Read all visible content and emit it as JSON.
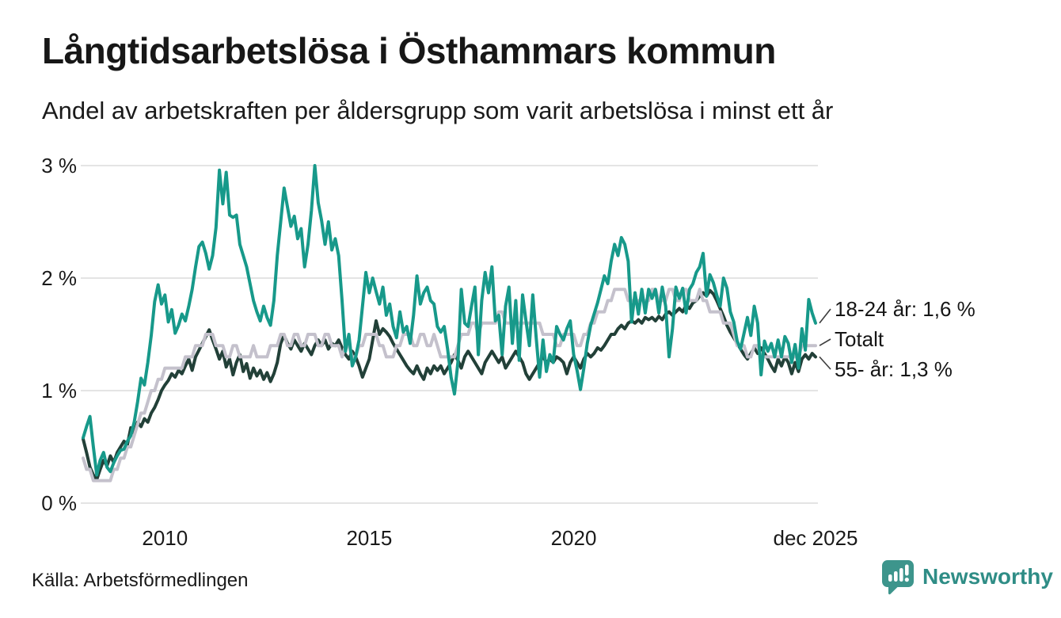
{
  "header": {
    "title": "Långtidsarbetslösa i Östhammars kommun",
    "subtitle": "Andel av arbetskraften per åldersgrupp som varit arbetslösa i minst ett år"
  },
  "footer": {
    "source": "Källa: Arbetsförmedlingen",
    "logo_text": "Newsworthy"
  },
  "chart_data": {
    "type": "line",
    "title": "Långtidsarbetslösa i Östhammars kommun",
    "subtitle": "Andel av arbetskraften per åldersgrupp som varit arbetslösa i minst ett år",
    "source": "Källa: Arbetsförmedlingen",
    "unit": "%",
    "grid": true,
    "grid_color": "#e4e4e4",
    "legend_position": "end-of-line-labels",
    "x_axis": {
      "start": "2008-01",
      "end": "2025-12",
      "frequency": "monthly",
      "ticks": [
        {
          "month_index": 24,
          "label": "2010"
        },
        {
          "month_index": 84,
          "label": "2015"
        },
        {
          "month_index": 144,
          "label": "2020"
        },
        {
          "month_index": 215,
          "label": "dec 2025"
        }
      ]
    },
    "y_axis": {
      "min": 0,
      "max": 3,
      "ticks": [
        {
          "value": 0,
          "label": "0 %"
        },
        {
          "value": 1,
          "label": "1 %"
        },
        {
          "value": 2,
          "label": "2 %"
        },
        {
          "value": 3,
          "label": "3 %"
        }
      ]
    },
    "series": [
      {
        "id": "age-18-24",
        "name": "18-24 år",
        "color": "#17998a",
        "end_label": "18-24 år: 1,6 %",
        "last_value": 1.6,
        "values": [
          0.58,
          0.68,
          0.77,
          0.5,
          0.25,
          0.38,
          0.45,
          0.32,
          0.28,
          0.36,
          0.42,
          0.47,
          0.48,
          0.55,
          0.6,
          0.72,
          0.9,
          1.11,
          1.05,
          1.25,
          1.49,
          1.79,
          1.94,
          1.77,
          1.85,
          1.61,
          1.72,
          1.51,
          1.58,
          1.68,
          1.62,
          1.75,
          1.9,
          2.1,
          2.28,
          2.32,
          2.22,
          2.08,
          2.2,
          2.45,
          2.96,
          2.66,
          2.94,
          2.56,
          2.54,
          2.56,
          2.3,
          2.2,
          2.1,
          1.95,
          1.8,
          1.7,
          1.62,
          1.75,
          1.65,
          1.58,
          1.8,
          2.2,
          2.5,
          2.8,
          2.63,
          2.46,
          2.55,
          2.35,
          2.44,
          2.1,
          2.3,
          2.6,
          3.0,
          2.67,
          2.51,
          2.3,
          2.5,
          2.25,
          2.35,
          2.2,
          1.8,
          1.35,
          1.5,
          1.22,
          1.3,
          1.45,
          1.75,
          2.05,
          1.87,
          2.0,
          1.88,
          1.77,
          1.92,
          1.67,
          1.77,
          1.57,
          1.47,
          1.7,
          1.52,
          1.57,
          1.42,
          1.67,
          2.02,
          1.77,
          1.87,
          1.92,
          1.8,
          1.77,
          1.57,
          1.52,
          1.57,
          1.37,
          1.12,
          0.97,
          1.25,
          1.9,
          1.6,
          1.57,
          1.75,
          1.92,
          1.32,
          1.8,
          2.05,
          1.87,
          2.1,
          1.62,
          1.67,
          1.32,
          1.75,
          1.92,
          1.42,
          1.8,
          1.27,
          1.85,
          1.62,
          1.4,
          1.85,
          1.47,
          1.12,
          1.45,
          1.17,
          1.32,
          1.25,
          1.57,
          1.5,
          1.45,
          1.55,
          1.62,
          1.32,
          1.18,
          1.01,
          1.2,
          1.42,
          1.58,
          1.68,
          1.78,
          1.9,
          2.02,
          1.95,
          2.15,
          2.3,
          2.2,
          2.36,
          2.3,
          2.15,
          1.61,
          1.87,
          1.68,
          1.9,
          1.69,
          1.9,
          1.82,
          1.9,
          1.69,
          1.92,
          1.75,
          1.3,
          1.55,
          1.92,
          1.82,
          1.91,
          1.69,
          1.9,
          1.95,
          2.05,
          2.1,
          2.22,
          1.84,
          2.03,
          1.96,
          1.85,
          1.75,
          2.0,
          1.91,
          1.7,
          1.61,
          1.44,
          1.37,
          1.51,
          1.65,
          1.49,
          1.75,
          1.6,
          1.14,
          1.44,
          1.35,
          1.42,
          1.3,
          1.45,
          1.3,
          1.48,
          1.42,
          1.25,
          1.41,
          1.2,
          1.55,
          1.36,
          1.81,
          1.69,
          1.6
        ]
      },
      {
        "id": "total",
        "name": "Totalt",
        "color": "#c4c1cc",
        "end_label": "Totalt",
        "last_value": 1.4,
        "values": [
          0.4,
          0.3,
          0.3,
          0.2,
          0.2,
          0.2,
          0.2,
          0.2,
          0.2,
          0.3,
          0.3,
          0.4,
          0.4,
          0.5,
          0.5,
          0.6,
          0.7,
          0.8,
          0.8,
          0.9,
          1.0,
          1.0,
          1.1,
          1.1,
          1.2,
          1.2,
          1.2,
          1.2,
          1.2,
          1.2,
          1.3,
          1.3,
          1.3,
          1.4,
          1.4,
          1.4,
          1.5,
          1.5,
          1.5,
          1.4,
          1.4,
          1.4,
          1.3,
          1.3,
          1.4,
          1.4,
          1.3,
          1.3,
          1.3,
          1.3,
          1.4,
          1.3,
          1.3,
          1.3,
          1.3,
          1.4,
          1.4,
          1.4,
          1.5,
          1.5,
          1.4,
          1.4,
          1.5,
          1.5,
          1.4,
          1.4,
          1.5,
          1.5,
          1.5,
          1.4,
          1.4,
          1.5,
          1.5,
          1.4,
          1.4,
          1.4,
          1.3,
          1.4,
          1.4,
          1.3,
          1.3,
          1.4,
          1.4,
          1.5,
          1.5,
          1.5,
          1.5,
          1.4,
          1.4,
          1.3,
          1.3,
          1.3,
          1.4,
          1.4,
          1.5,
          1.5,
          1.5,
          1.4,
          1.4,
          1.5,
          1.5,
          1.4,
          1.4,
          1.5,
          1.4,
          1.3,
          1.3,
          1.3,
          1.3,
          1.3,
          1.4,
          1.5,
          1.5,
          1.5,
          1.6,
          1.6,
          1.5,
          1.6,
          1.6,
          1.6,
          1.6,
          1.6,
          1.7,
          1.7,
          1.6,
          1.6,
          1.6,
          1.6,
          1.6,
          1.6,
          1.6,
          1.6,
          1.6,
          1.6,
          1.6,
          1.5,
          1.5,
          1.5,
          1.5,
          1.4,
          1.4,
          1.5,
          1.5,
          1.5,
          1.5,
          1.4,
          1.4,
          1.5,
          1.5,
          1.6,
          1.6,
          1.7,
          1.7,
          1.7,
          1.8,
          1.8,
          1.9,
          1.9,
          1.9,
          1.9,
          1.8,
          1.8,
          1.8,
          1.8,
          1.8,
          1.8,
          1.8,
          1.9,
          1.9,
          1.8,
          1.8,
          1.8,
          1.9,
          1.9,
          1.8,
          1.8,
          1.9,
          1.9,
          1.8,
          1.8,
          1.8,
          1.9,
          1.8,
          1.8,
          1.7,
          1.7,
          1.7,
          1.7,
          1.6,
          1.6,
          1.6,
          1.5,
          1.4,
          1.4,
          1.4,
          1.3,
          1.3,
          1.4,
          1.4,
          1.3,
          1.3,
          1.3,
          1.3,
          1.3,
          1.3,
          1.3,
          1.3,
          1.3,
          1.3,
          1.3,
          1.3,
          1.4,
          1.4,
          1.4,
          1.4,
          1.4
        ]
      },
      {
        "id": "age-55-plus",
        "name": "55- år",
        "color": "#224038",
        "end_label": "55- år: 1,3 %",
        "last_value": 1.3,
        "values": [
          0.57,
          0.45,
          0.32,
          0.25,
          0.21,
          0.3,
          0.38,
          0.33,
          0.42,
          0.36,
          0.45,
          0.5,
          0.55,
          0.52,
          0.67,
          0.62,
          0.72,
          0.68,
          0.75,
          0.72,
          0.8,
          0.85,
          0.92,
          1.0,
          1.05,
          1.09,
          1.15,
          1.12,
          1.18,
          1.15,
          1.22,
          1.28,
          1.18,
          1.3,
          1.36,
          1.42,
          1.48,
          1.54,
          1.45,
          1.37,
          1.28,
          1.35,
          1.21,
          1.28,
          1.14,
          1.25,
          1.32,
          1.17,
          1.24,
          1.11,
          1.2,
          1.13,
          1.18,
          1.1,
          1.16,
          1.08,
          1.15,
          1.25,
          1.42,
          1.49,
          1.42,
          1.37,
          1.45,
          1.4,
          1.35,
          1.42,
          1.37,
          1.32,
          1.4,
          1.45,
          1.4,
          1.45,
          1.37,
          1.42,
          1.4,
          1.45,
          1.38,
          1.32,
          1.28,
          1.35,
          1.3,
          1.22,
          1.12,
          1.2,
          1.28,
          1.45,
          1.62,
          1.5,
          1.55,
          1.52,
          1.48,
          1.42,
          1.37,
          1.32,
          1.27,
          1.22,
          1.18,
          1.15,
          1.22,
          1.15,
          1.1,
          1.2,
          1.15,
          1.22,
          1.18,
          1.22,
          1.15,
          1.2,
          1.25,
          1.32,
          1.27,
          1.2,
          1.3,
          1.35,
          1.3,
          1.25,
          1.2,
          1.15,
          1.25,
          1.3,
          1.35,
          1.3,
          1.25,
          1.3,
          1.2,
          1.25,
          1.3,
          1.35,
          1.3,
          1.25,
          1.15,
          1.1,
          1.15,
          1.2,
          1.25,
          1.3,
          1.25,
          1.28,
          1.25,
          1.3,
          1.28,
          1.25,
          1.15,
          1.25,
          1.3,
          1.25,
          1.2,
          1.28,
          1.33,
          1.3,
          1.33,
          1.38,
          1.36,
          1.4,
          1.45,
          1.5,
          1.5,
          1.55,
          1.58,
          1.55,
          1.6,
          1.62,
          1.6,
          1.63,
          1.6,
          1.65,
          1.63,
          1.65,
          1.62,
          1.66,
          1.63,
          1.68,
          1.7,
          1.67,
          1.7,
          1.73,
          1.7,
          1.76,
          1.73,
          1.78,
          1.8,
          1.84,
          1.87,
          1.84,
          1.89,
          1.86,
          1.8,
          1.73,
          1.66,
          1.58,
          1.52,
          1.47,
          1.42,
          1.37,
          1.32,
          1.28,
          1.33,
          1.38,
          1.33,
          1.38,
          1.33,
          1.28,
          1.22,
          1.17,
          1.28,
          1.22,
          1.3,
          1.25,
          1.15,
          1.25,
          1.17,
          1.28,
          1.32,
          1.28,
          1.33,
          1.3
        ]
      }
    ]
  }
}
